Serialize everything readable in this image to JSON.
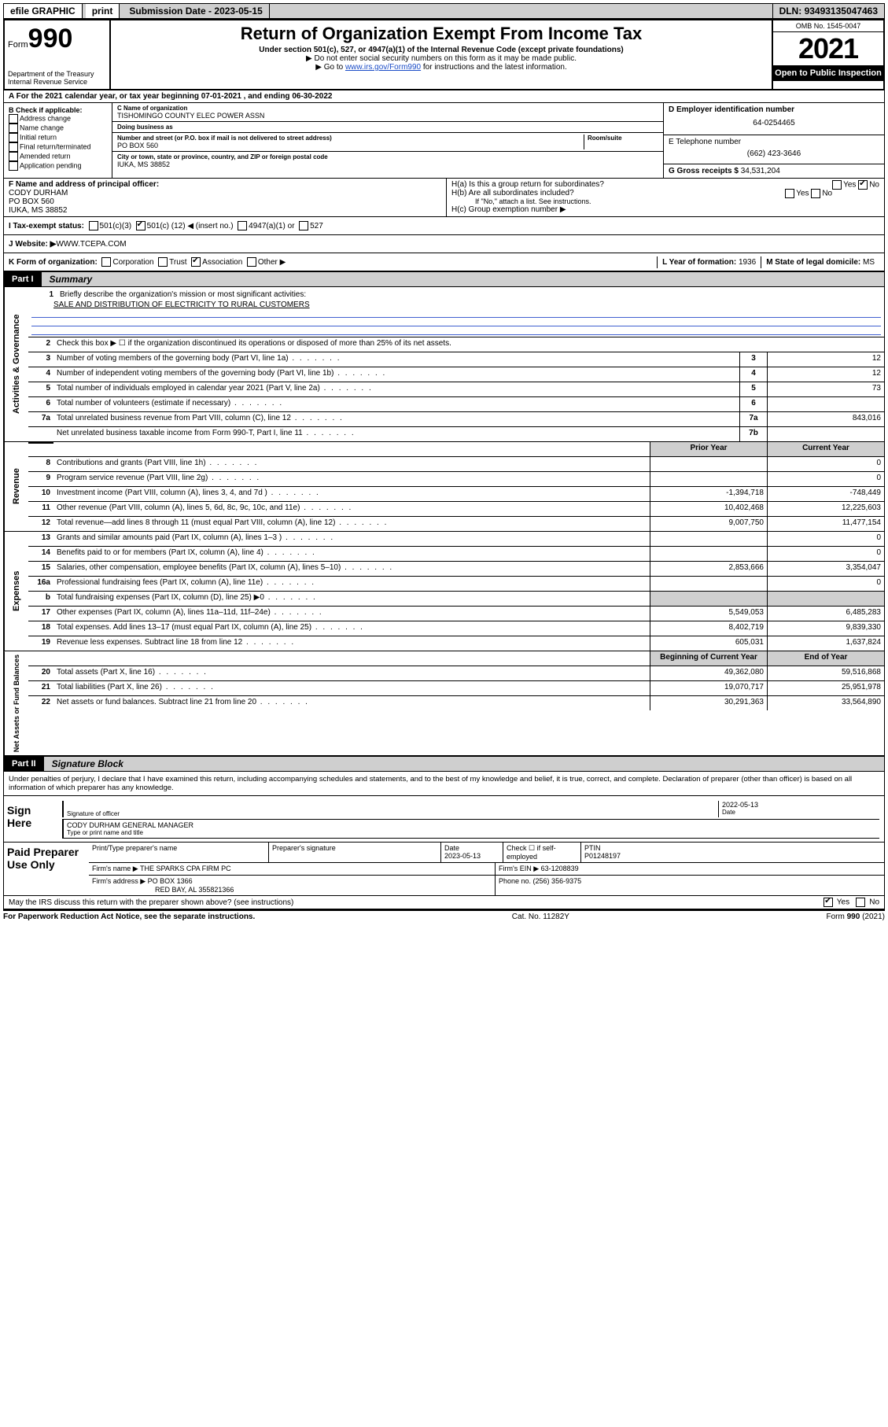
{
  "topbar": {
    "efile": "efile GRAPHIC",
    "print": "print",
    "subdate_label": "Submission Date - ",
    "subdate": "2023-05-15",
    "dln_label": "DLN: ",
    "dln": "93493135047463"
  },
  "header": {
    "form_prefix": "Form",
    "form_number": "990",
    "dept": "Department of the Treasury",
    "irs": "Internal Revenue Service",
    "title": "Return of Organization Exempt From Income Tax",
    "subtitle": "Under section 501(c), 527, or 4947(a)(1) of the Internal Revenue Code (except private foundations)",
    "note1": "▶ Do not enter social security numbers on this form as it may be made public.",
    "note2_pre": "▶ Go to ",
    "note2_link": "www.irs.gov/Form990",
    "note2_post": " for instructions and the latest information.",
    "omb": "OMB No. 1545-0047",
    "year": "2021",
    "open": "Open to Public Inspection"
  },
  "rowA": "A For the 2021 calendar year, or tax year beginning 07-01-2021    , and ending 06-30-2022",
  "colB": {
    "label": "B Check if applicable:",
    "items": [
      "Address change",
      "Name change",
      "Initial return",
      "Final return/terminated",
      "Amended return",
      "Application pending"
    ]
  },
  "colC": {
    "name_label": "C Name of organization",
    "name": "TISHOMINGO COUNTY ELEC POWER ASSN",
    "dba_label": "Doing business as",
    "dba": "",
    "street_label": "Number and street (or P.O. box if mail is not delivered to street address)",
    "street": "PO BOX 560",
    "room_label": "Room/suite",
    "city_label": "City or town, state or province, country, and ZIP or foreign postal code",
    "city": "IUKA, MS  38852"
  },
  "colD": {
    "ein_label": "D Employer identification number",
    "ein": "64-0254465",
    "phone_label": "E Telephone number",
    "phone": "(662) 423-3646",
    "gross_label": "G Gross receipts $ ",
    "gross": "34,531,204"
  },
  "rowF": {
    "label": "F Name and address of principal officer:",
    "name": "CODY DURHAM",
    "addr1": "PO BOX 560",
    "addr2": "IUKA, MS  38852"
  },
  "rowH": {
    "ha": "H(a)  Is this a group return for subordinates?",
    "hb": "H(b)  Are all subordinates included?",
    "hb_note": "If \"No,\" attach a list. See instructions.",
    "hc": "H(c)  Group exemption number ▶"
  },
  "rowI": {
    "label": "I   Tax-exempt status:",
    "c3": "501(c)(3)",
    "cins_pre": "501(c) ( ",
    "cins_val": "12",
    "cins_post": " ) ◀ (insert no.)",
    "a1": "4947(a)(1) or",
    "s527": "527"
  },
  "rowJ": {
    "label": "J   Website: ▶ ",
    "url": "WWW.TCEPA.COM"
  },
  "rowK": {
    "label": "K Form of organization:",
    "opts": [
      "Corporation",
      "Trust",
      "Association",
      "Other ▶"
    ],
    "checked": 2,
    "L_label": "L Year of formation: ",
    "L_val": "1936",
    "M_label": "M State of legal domicile: ",
    "M_val": "MS"
  },
  "partI": {
    "num": "Part I",
    "title": "Summary"
  },
  "activities_label": "Activities & Governance",
  "revenue_label": "Revenue",
  "expenses_label": "Expenses",
  "netassets_label": "Net Assets or Fund Balances",
  "s1": {
    "desc": "Briefly describe the organization's mission or most significant activities:",
    "mission": "SALE AND DISTRIBUTION OF ELECTRICITY TO RURAL CUSTOMERS"
  },
  "s2": "Check this box ▶ ☐  if the organization discontinued its operations or disposed of more than 25% of its net assets.",
  "lines_gov": [
    {
      "n": "3",
      "d": "Number of voting members of the governing body (Part VI, line 1a)",
      "box": "3",
      "v": "12"
    },
    {
      "n": "4",
      "d": "Number of independent voting members of the governing body (Part VI, line 1b)",
      "box": "4",
      "v": "12"
    },
    {
      "n": "5",
      "d": "Total number of individuals employed in calendar year 2021 (Part V, line 2a)",
      "box": "5",
      "v": "73"
    },
    {
      "n": "6",
      "d": "Total number of volunteers (estimate if necessary)",
      "box": "6",
      "v": ""
    },
    {
      "n": "7a",
      "d": "Total unrelated business revenue from Part VIII, column (C), line 12",
      "box": "7a",
      "v": "843,016"
    },
    {
      "n": "",
      "d": "Net unrelated business taxable income from Form 990-T, Part I, line 11",
      "box": "7b",
      "v": ""
    }
  ],
  "colhdr": {
    "prior": "Prior Year",
    "current": "Current Year",
    "boy": "Beginning of Current Year",
    "eoy": "End of Year"
  },
  "lines_rev": [
    {
      "n": "8",
      "d": "Contributions and grants (Part VIII, line 1h)",
      "p": "",
      "c": "0"
    },
    {
      "n": "9",
      "d": "Program service revenue (Part VIII, line 2g)",
      "p": "",
      "c": "0"
    },
    {
      "n": "10",
      "d": "Investment income (Part VIII, column (A), lines 3, 4, and 7d )",
      "p": "-1,394,718",
      "c": "-748,449"
    },
    {
      "n": "11",
      "d": "Other revenue (Part VIII, column (A), lines 5, 6d, 8c, 9c, 10c, and 11e)",
      "p": "10,402,468",
      "c": "12,225,603"
    },
    {
      "n": "12",
      "d": "Total revenue—add lines 8 through 11 (must equal Part VIII, column (A), line 12)",
      "p": "9,007,750",
      "c": "11,477,154"
    }
  ],
  "lines_exp": [
    {
      "n": "13",
      "d": "Grants and similar amounts paid (Part IX, column (A), lines 1–3 )",
      "p": "",
      "c": "0"
    },
    {
      "n": "14",
      "d": "Benefits paid to or for members (Part IX, column (A), line 4)",
      "p": "",
      "c": "0"
    },
    {
      "n": "15",
      "d": "Salaries, other compensation, employee benefits (Part IX, column (A), lines 5–10)",
      "p": "2,853,666",
      "c": "3,354,047"
    },
    {
      "n": "16a",
      "d": "Professional fundraising fees (Part IX, column (A), line 11e)",
      "p": "",
      "c": "0"
    },
    {
      "n": "b",
      "d": "Total fundraising expenses (Part IX, column (D), line 25) ▶0",
      "p": "shade",
      "c": "shade"
    },
    {
      "n": "17",
      "d": "Other expenses (Part IX, column (A), lines 11a–11d, 11f–24e)",
      "p": "5,549,053",
      "c": "6,485,283"
    },
    {
      "n": "18",
      "d": "Total expenses. Add lines 13–17 (must equal Part IX, column (A), line 25)",
      "p": "8,402,719",
      "c": "9,839,330"
    },
    {
      "n": "19",
      "d": "Revenue less expenses. Subtract line 18 from line 12",
      "p": "605,031",
      "c": "1,637,824"
    }
  ],
  "lines_net": [
    {
      "n": "20",
      "d": "Total assets (Part X, line 16)",
      "p": "49,362,080",
      "c": "59,516,868"
    },
    {
      "n": "21",
      "d": "Total liabilities (Part X, line 26)",
      "p": "19,070,717",
      "c": "25,951,978"
    },
    {
      "n": "22",
      "d": "Net assets or fund balances. Subtract line 21 from line 20",
      "p": "30,291,363",
      "c": "33,564,890"
    }
  ],
  "partII": {
    "num": "Part II",
    "title": "Signature Block"
  },
  "sig": {
    "decl": "Under penalties of perjury, I declare that I have examined this return, including accompanying schedules and statements, and to the best of my knowledge and belief, it is true, correct, and complete. Declaration of preparer (other than officer) is based on all information of which preparer has any knowledge.",
    "sign_here": "Sign Here",
    "sig_officer": "Signature of officer",
    "date": "2022-05-13",
    "date_label": "Date",
    "name": "CODY DURHAM  GENERAL MANAGER",
    "name_label": "Type or print name and title"
  },
  "paid": {
    "label": "Paid Preparer Use Only",
    "h_name": "Print/Type preparer's name",
    "h_sig": "Preparer's signature",
    "h_date": "Date",
    "date": "2023-05-13",
    "check_label": "Check ☐ if self-employed",
    "ptin_label": "PTIN",
    "ptin": "P01248197",
    "firm_name_label": "Firm's name    ▶ ",
    "firm_name": "THE SPARKS CPA FIRM PC",
    "firm_ein_label": "Firm's EIN ▶ ",
    "firm_ein": "63-1208839",
    "firm_addr_label": "Firm's address ▶ ",
    "firm_addr1": "PO BOX 1366",
    "firm_addr2": "RED BAY, AL  355821366",
    "phone_label": "Phone no. ",
    "phone": "(256) 356-9375"
  },
  "may": "May the IRS discuss this return with the preparer shown above? (see instructions)",
  "footer": {
    "l": "For Paperwork Reduction Act Notice, see the separate instructions.",
    "c": "Cat. No. 11282Y",
    "r": "Form 990 (2021)"
  }
}
